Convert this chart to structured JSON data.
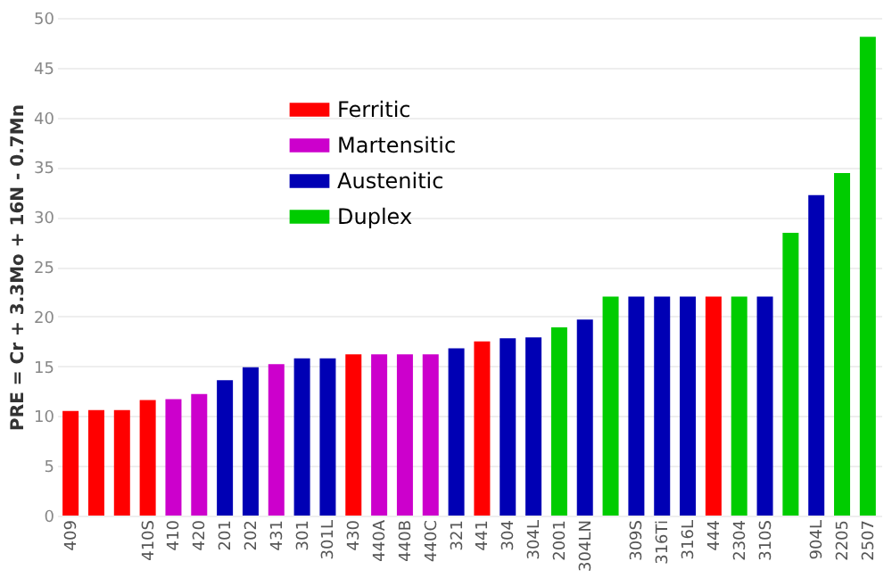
{
  "chart_data": {
    "type": "bar",
    "ylabel": "PRE = Cr + 3.3Mo + 16N - 0.7Mn",
    "categories": [
      "409",
      null,
      null,
      "410S",
      "410",
      "420",
      "201",
      "202",
      "431",
      "301",
      "301L",
      "430",
      "440A",
      "440B",
      "440C",
      "321",
      "441",
      "304",
      "304L",
      "2001",
      "304LN",
      null,
      "309S",
      "316Ti",
      "316L",
      "444",
      "2304",
      "310S",
      null,
      "904L",
      "2205",
      "2507"
    ],
    "series": [
      {
        "name": "Ferritic",
        "color": "#ff0000",
        "values": [
          10.5,
          10.6,
          10.6,
          11.6,
          null,
          null,
          null,
          null,
          null,
          null,
          null,
          16.2,
          null,
          null,
          null,
          null,
          17.5,
          null,
          null,
          null,
          null,
          null,
          null,
          null,
          null,
          22,
          null,
          null,
          null,
          null,
          null,
          null
        ]
      },
      {
        "name": "Martensitic",
        "color": "#cc00cc",
        "values": [
          null,
          null,
          null,
          null,
          11.7,
          12.2,
          null,
          null,
          15.2,
          null,
          null,
          null,
          16.2,
          16.2,
          16.2,
          null,
          null,
          null,
          null,
          null,
          null,
          null,
          null,
          null,
          null,
          null,
          null,
          null,
          null,
          null,
          null,
          null
        ]
      },
      {
        "name": "Austenitic",
        "color": "#0000b4",
        "values": [
          null,
          null,
          null,
          null,
          null,
          null,
          13.6,
          14.9,
          null,
          15.8,
          15.8,
          null,
          null,
          null,
          null,
          16.8,
          null,
          17.8,
          17.9,
          null,
          19.7,
          null,
          22,
          22,
          22,
          null,
          null,
          22,
          null,
          32.2,
          null,
          null
        ]
      },
      {
        "name": "Duplex",
        "color": "#00cc00",
        "values": [
          null,
          null,
          null,
          null,
          null,
          null,
          null,
          null,
          null,
          null,
          null,
          null,
          null,
          null,
          null,
          null,
          null,
          null,
          null,
          18.9,
          null,
          22,
          null,
          null,
          null,
          null,
          22,
          null,
          28.4,
          null,
          34.4,
          48.1
        ]
      }
    ],
    "ylim": [
      0,
      50
    ],
    "yticks": [
      0,
      5,
      10,
      15,
      20,
      25,
      30,
      35,
      40,
      45,
      50
    ],
    "grid": "y",
    "legend": "top left"
  }
}
